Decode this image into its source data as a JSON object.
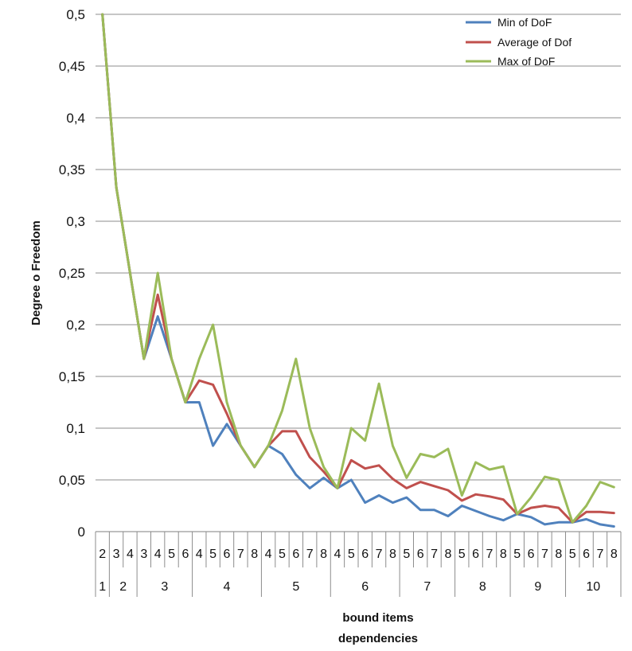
{
  "chart_data": {
    "type": "line",
    "title": "",
    "ylabel": "Degree o Freedom",
    "xlabel_lines": [
      "bound items",
      "dependencies"
    ],
    "ylim": [
      0,
      0.5
    ],
    "yticks": [
      "0",
      "0,05",
      "0,1",
      "0,15",
      "0,2",
      "0,25",
      "0,3",
      "0,35",
      "0,4",
      "0,45",
      "0,5"
    ],
    "grid": "horizontal",
    "legend_position": "top-right",
    "inner_categories": [
      "2",
      "3",
      "4",
      "3",
      "4",
      "5",
      "6",
      "4",
      "5",
      "6",
      "7",
      "8",
      "4",
      "5",
      "6",
      "7",
      "8",
      "4",
      "5",
      "6",
      "7",
      "8",
      "5",
      "6",
      "7",
      "8",
      "5",
      "6",
      "7",
      "8",
      "5",
      "6",
      "7",
      "8",
      "5",
      "6",
      "7",
      "8"
    ],
    "outer_groups": [
      {
        "label": "1",
        "span": 1
      },
      {
        "label": "2",
        "span": 2
      },
      {
        "label": "3",
        "span": 4
      },
      {
        "label": "4",
        "span": 5
      },
      {
        "label": "5",
        "span": 5
      },
      {
        "label": "6",
        "span": 5
      },
      {
        "label": "7",
        "span": 4
      },
      {
        "label": "8",
        "span": 4
      },
      {
        "label": "9",
        "span": 4
      },
      {
        "label": "10",
        "span": 4
      }
    ],
    "series": [
      {
        "name": "Min of DoF",
        "color": "#4f81bd",
        "values": [
          0.5,
          0.333,
          0.25,
          0.167,
          0.208,
          0.167,
          0.125,
          0.125,
          0.083,
          0.104,
          0.083,
          0.0625,
          0.083,
          0.075,
          0.055,
          0.042,
          0.052,
          0.042,
          0.05,
          0.028,
          0.035,
          0.028,
          0.033,
          0.021,
          0.021,
          0.015,
          0.025,
          0.02,
          0.015,
          0.011,
          0.017,
          0.014,
          0.007,
          0.009,
          0.009,
          0.012,
          0.007,
          0.005
        ]
      },
      {
        "name": "Average of Dof",
        "color": "#c0504d",
        "values": [
          0.5,
          0.333,
          0.25,
          0.167,
          0.229,
          0.167,
          0.125,
          0.146,
          0.142,
          0.114,
          0.083,
          0.0625,
          0.083,
          0.097,
          0.097,
          0.072,
          0.058,
          0.042,
          0.069,
          0.061,
          0.064,
          0.051,
          0.042,
          0.048,
          0.044,
          0.04,
          0.03,
          0.036,
          0.034,
          0.031,
          0.017,
          0.023,
          0.025,
          0.023,
          0.009,
          0.019,
          0.019,
          0.018
        ]
      },
      {
        "name": "Max of DoF",
        "color": "#9bbb59",
        "values": [
          0.5,
          0.333,
          0.25,
          0.167,
          0.25,
          0.167,
          0.125,
          0.167,
          0.2,
          0.125,
          0.083,
          0.0625,
          0.083,
          0.117,
          0.167,
          0.1,
          0.0625,
          0.042,
          0.1,
          0.088,
          0.143,
          0.083,
          0.052,
          0.075,
          0.072,
          0.08,
          0.035,
          0.067,
          0.06,
          0.063,
          0.017,
          0.033,
          0.053,
          0.05,
          0.009,
          0.025,
          0.048,
          0.043
        ]
      }
    ]
  }
}
